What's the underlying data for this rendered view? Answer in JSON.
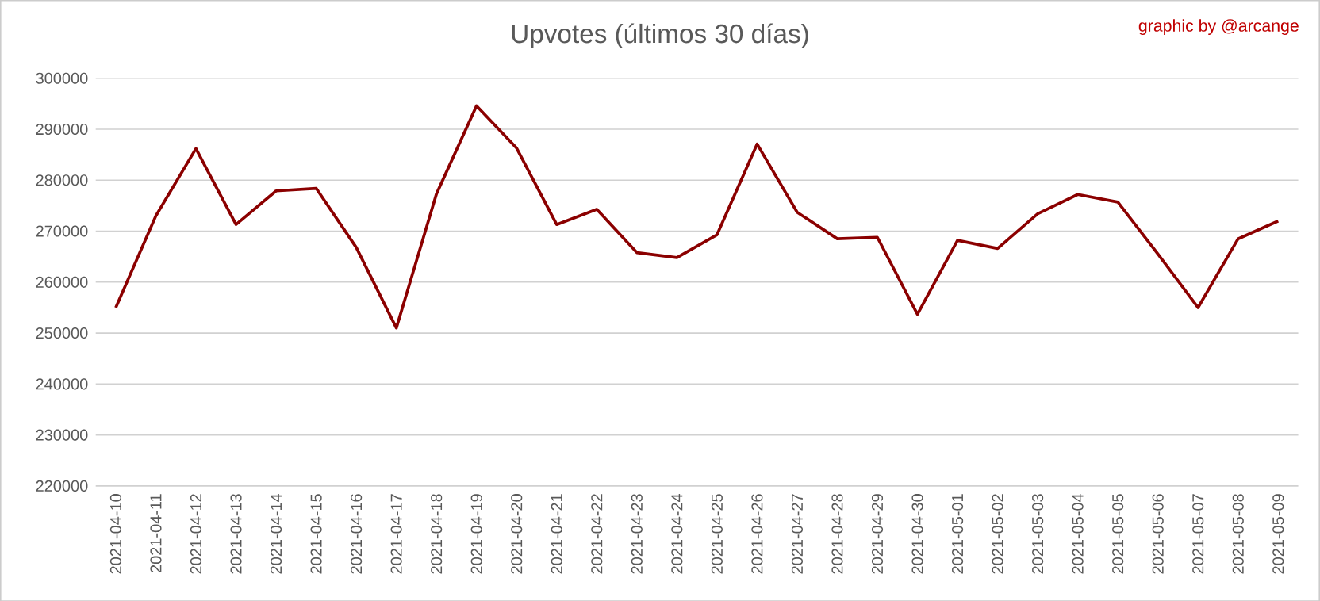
{
  "chart_data": {
    "type": "line",
    "title": "Upvotes (últimos 30 días)",
    "annotations": [
      "graphic by @arcange"
    ],
    "categories": [
      "2021-04-10",
      "2021-04-11",
      "2021-04-12",
      "2021-04-13",
      "2021-04-14",
      "2021-04-15",
      "2021-04-16",
      "2021-04-17",
      "2021-04-18",
      "2021-04-19",
      "2021-04-20",
      "2021-04-21",
      "2021-04-22",
      "2021-04-23",
      "2021-04-24",
      "2021-04-25",
      "2021-04-26",
      "2021-04-27",
      "2021-04-28",
      "2021-04-29",
      "2021-04-30",
      "2021-05-01",
      "2021-05-02",
      "2021-05-03",
      "2021-05-04",
      "2021-05-05",
      "2021-05-06",
      "2021-05-07",
      "2021-05-08",
      "2021-05-09"
    ],
    "series": [
      {
        "color": "#8b0000",
        "values": [
          255000,
          273000,
          286200,
          271300,
          277900,
          278400,
          266800,
          251000,
          277300,
          294600,
          286300,
          271300,
          274300,
          265800,
          264800,
          269300,
          287100,
          273700,
          268500,
          268800,
          253700,
          268200,
          266600,
          273400,
          277200,
          275700,
          265500,
          255000,
          268500,
          272000
        ]
      }
    ],
    "ylim": [
      220000,
      300000
    ],
    "yticks": [
      220000,
      230000,
      240000,
      250000,
      260000,
      270000,
      280000,
      290000,
      300000
    ],
    "grid": "y",
    "legend": false,
    "marker": "none",
    "line_style": "solid"
  }
}
